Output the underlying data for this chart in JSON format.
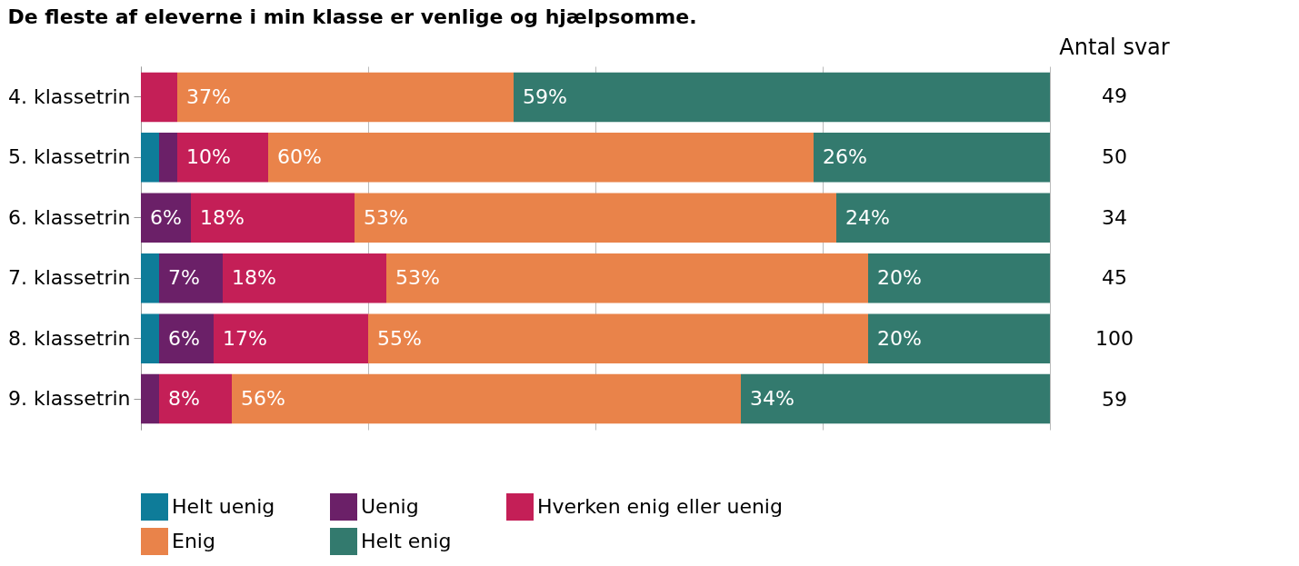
{
  "chart_data": {
    "type": "bar",
    "orientation": "horizontal",
    "stacked": true,
    "title": "De fleste af eleverne i min klasse er venlige og hjælpsomme.",
    "categories": [
      "4. klassetrin",
      "5. klassetrin",
      "6. klassetrin",
      "7. klassetrin",
      "8. klassetrin",
      "9. klassetrin"
    ],
    "series": [
      {
        "name": "Helt uenig",
        "color": "#0e7c99",
        "values": [
          0,
          2,
          0,
          2,
          2,
          0
        ],
        "value_labels": [
          null,
          null,
          null,
          null,
          null,
          null
        ]
      },
      {
        "name": "Uenig",
        "color": "#6b2068",
        "values": [
          0,
          2,
          5.5,
          7,
          6,
          2
        ],
        "value_labels": [
          null,
          null,
          "6%",
          "7%",
          "6%",
          null
        ]
      },
      {
        "name": "Hverken enig eller uenig",
        "color": "#c41f57",
        "values": [
          4,
          10,
          18,
          18,
          17,
          8
        ],
        "value_labels": [
          null,
          "10%",
          "18%",
          "18%",
          "17%",
          "8%"
        ]
      },
      {
        "name": "Enig",
        "color": "#e9834a",
        "values": [
          37,
          60,
          53,
          53,
          55,
          56
        ],
        "value_labels": [
          "37%",
          "60%",
          "53%",
          "53%",
          "55%",
          "56%"
        ]
      },
      {
        "name": "Helt enig",
        "color": "#337a6e",
        "values": [
          59,
          26,
          23.5,
          20,
          20,
          34
        ],
        "value_labels": [
          "59%",
          "26%",
          "24%",
          "20%",
          "20%",
          "34%"
        ]
      }
    ],
    "xlim": [
      0,
      100
    ],
    "xticks": [
      {
        "value": 0,
        "label": null
      },
      {
        "value": 25,
        "label": null
      },
      {
        "value": 50,
        "label": null
      },
      {
        "value": 75,
        "label": null
      },
      {
        "value": 100,
        "label": null
      }
    ],
    "tick_labels": "y",
    "grid": "x",
    "legend": "bottom",
    "annotations": [
      "Antal svar",
      "49",
      "50",
      "34",
      "45",
      "100",
      "59"
    ]
  }
}
